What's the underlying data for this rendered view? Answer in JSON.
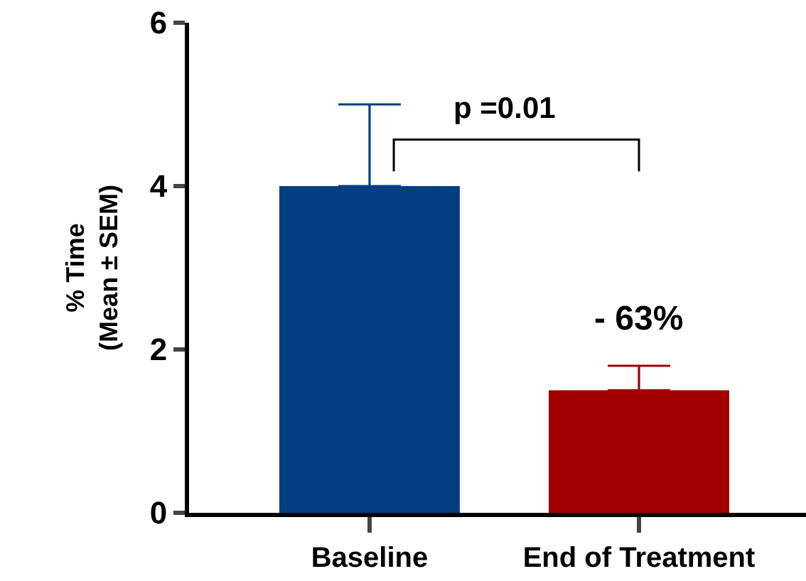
{
  "chart_data": {
    "type": "bar",
    "ylabel": "% Time\n(Mean ± SEM)",
    "categories": [
      "Baseline",
      "End of Treatment"
    ],
    "values": [
      4.0,
      1.5
    ],
    "colors": [
      "#033f80",
      "#a00000"
    ],
    "errors": [
      [
        4.0,
        5.0
      ],
      [
        1.5,
        1.8
      ]
    ],
    "ylim": [
      0,
      6
    ],
    "yticks": [
      0,
      2,
      4,
      6
    ],
    "legend": false,
    "annotations": [
      "p =0.01",
      "- 63%"
    ]
  }
}
